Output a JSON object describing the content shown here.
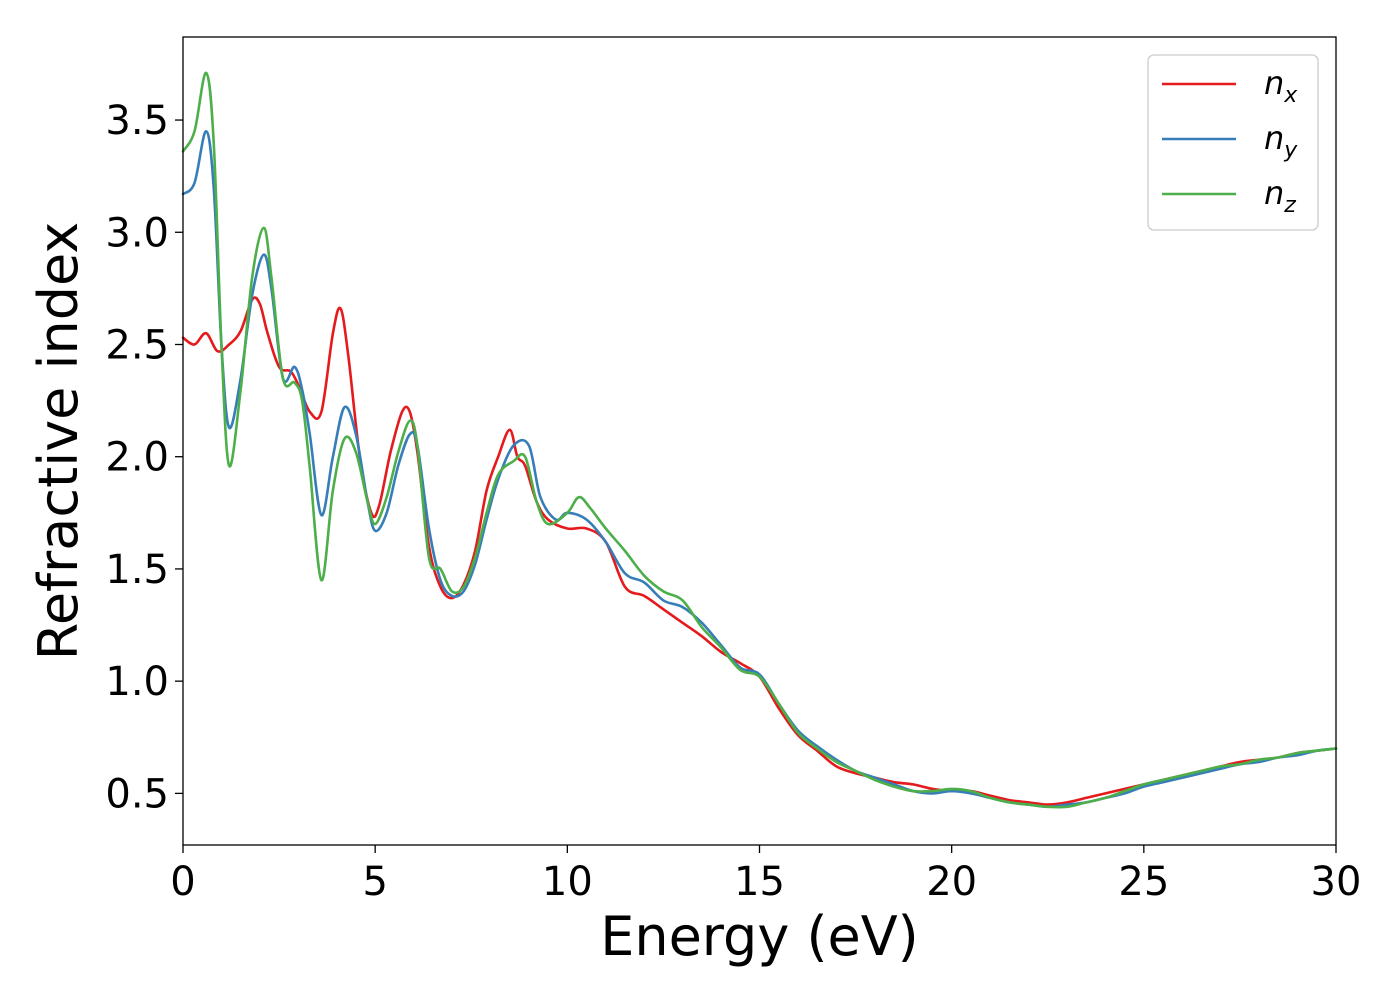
{
  "chart_data": {
    "type": "line",
    "title": "",
    "xlabel": "Energy (eV)",
    "ylabel": "Refractive index",
    "xlim": [
      0,
      30
    ],
    "ylim": [
      0.27,
      3.87
    ],
    "xticks": [
      0,
      5,
      10,
      15,
      20,
      25,
      30
    ],
    "yticks": [
      0.5,
      1.0,
      1.5,
      2.0,
      2.5,
      3.0,
      3.5
    ],
    "xtick_labels": [
      "0",
      "5",
      "10",
      "15",
      "20",
      "25",
      "30"
    ],
    "ytick_labels": [
      "0.5",
      "1.0",
      "1.5",
      "2.0",
      "2.5",
      "3.0",
      "3.5"
    ],
    "grid": false,
    "legend_position": "top-right",
    "series": [
      {
        "name": "n",
        "subscript": "x",
        "color": "#e41a1c",
        "x": [
          0,
          0.3,
          0.6,
          0.9,
          1.2,
          1.5,
          1.8,
          2.0,
          2.2,
          2.5,
          2.8,
          3.0,
          3.3,
          3.6,
          3.9,
          4.1,
          4.3,
          4.6,
          4.9,
          5.1,
          5.4,
          5.7,
          5.9,
          6.1,
          6.4,
          6.7,
          7.0,
          7.3,
          7.6,
          7.9,
          8.2,
          8.5,
          8.7,
          8.9,
          9.2,
          9.5,
          10.0,
          10.5,
          11.0,
          11.5,
          12.0,
          12.5,
          13.0,
          13.5,
          14.0,
          14.5,
          15.0,
          15.5,
          16.0,
          16.5,
          17.0,
          17.5,
          18.0,
          18.5,
          19.0,
          19.5,
          20.0,
          20.5,
          21.0,
          21.5,
          22.0,
          22.5,
          23.0,
          23.5,
          24.0,
          24.5,
          25.0,
          25.5,
          26.0,
          26.5,
          27.0,
          27.5,
          28.0,
          28.5,
          29.0,
          29.5,
          30.0
        ],
        "y": [
          2.53,
          2.5,
          2.55,
          2.47,
          2.5,
          2.56,
          2.7,
          2.68,
          2.55,
          2.4,
          2.38,
          2.32,
          2.2,
          2.2,
          2.55,
          2.66,
          2.45,
          2.0,
          1.75,
          1.78,
          2.02,
          2.2,
          2.2,
          2.02,
          1.6,
          1.42,
          1.37,
          1.43,
          1.58,
          1.85,
          2.0,
          2.12,
          2.0,
          1.96,
          1.8,
          1.72,
          1.68,
          1.68,
          1.62,
          1.42,
          1.38,
          1.32,
          1.26,
          1.2,
          1.13,
          1.08,
          1.02,
          0.88,
          0.76,
          0.69,
          0.62,
          0.59,
          0.57,
          0.55,
          0.54,
          0.52,
          0.51,
          0.51,
          0.49,
          0.47,
          0.46,
          0.45,
          0.46,
          0.48,
          0.5,
          0.52,
          0.54,
          0.56,
          0.58,
          0.6,
          0.62,
          0.64,
          0.65,
          0.66,
          0.68,
          0.69,
          0.7
        ]
      },
      {
        "name": "n",
        "subscript": "y",
        "color": "#377eb8",
        "x": [
          0,
          0.3,
          0.6,
          0.8,
          1.0,
          1.2,
          1.5,
          1.8,
          2.1,
          2.3,
          2.6,
          2.9,
          3.1,
          3.3,
          3.6,
          3.9,
          4.2,
          4.5,
          4.8,
          5.0,
          5.3,
          5.6,
          5.9,
          6.1,
          6.4,
          6.7,
          7.0,
          7.3,
          7.6,
          7.9,
          8.2,
          8.6,
          9.0,
          9.3,
          9.7,
          10.0,
          10.5,
          11.0,
          11.5,
          12.0,
          12.5,
          13.0,
          13.5,
          14.0,
          14.5,
          15.0,
          15.5,
          16.0,
          16.5,
          17.0,
          17.5,
          18.0,
          18.5,
          19.0,
          19.5,
          20.0,
          20.5,
          21.0,
          21.5,
          22.0,
          22.5,
          23.0,
          23.5,
          24.0,
          24.5,
          25.0,
          25.5,
          26.0,
          26.5,
          27.0,
          27.5,
          28.0,
          28.5,
          29.0,
          29.5,
          30.0
        ],
        "y": [
          3.17,
          3.22,
          3.45,
          3.2,
          2.5,
          2.13,
          2.35,
          2.72,
          2.9,
          2.75,
          2.35,
          2.4,
          2.3,
          2.1,
          1.74,
          2.0,
          2.22,
          2.1,
          1.8,
          1.67,
          1.75,
          1.96,
          2.1,
          2.05,
          1.68,
          1.45,
          1.38,
          1.4,
          1.52,
          1.72,
          1.9,
          2.05,
          2.05,
          1.82,
          1.72,
          1.75,
          1.72,
          1.62,
          1.48,
          1.44,
          1.36,
          1.33,
          1.26,
          1.16,
          1.06,
          1.03,
          0.9,
          0.78,
          0.71,
          0.65,
          0.6,
          0.57,
          0.54,
          0.51,
          0.5,
          0.51,
          0.5,
          0.48,
          0.46,
          0.45,
          0.44,
          0.45,
          0.46,
          0.48,
          0.5,
          0.53,
          0.55,
          0.57,
          0.59,
          0.61,
          0.63,
          0.64,
          0.66,
          0.67,
          0.69,
          0.7
        ]
      },
      {
        "name": "n",
        "subscript": "z",
        "color": "#4daf4a",
        "x": [
          0,
          0.3,
          0.6,
          0.8,
          1.0,
          1.2,
          1.5,
          1.8,
          2.1,
          2.3,
          2.6,
          2.9,
          3.1,
          3.3,
          3.6,
          3.9,
          4.2,
          4.5,
          4.8,
          5.0,
          5.3,
          5.6,
          5.9,
          6.1,
          6.4,
          6.7,
          7.0,
          7.3,
          7.6,
          7.9,
          8.2,
          8.6,
          8.9,
          9.2,
          9.5,
          10.0,
          10.3,
          10.6,
          11.0,
          11.5,
          12.0,
          12.5,
          13.0,
          13.5,
          14.0,
          14.5,
          15.0,
          15.5,
          16.0,
          16.5,
          17.0,
          17.5,
          18.0,
          18.5,
          19.0,
          19.5,
          20.0,
          20.5,
          21.0,
          21.5,
          22.0,
          22.5,
          23.0,
          23.5,
          24.0,
          24.5,
          25.0,
          25.5,
          26.0,
          26.5,
          27.0,
          27.5,
          28.0,
          28.5,
          29.0,
          29.5,
          30.0
        ],
        "y": [
          3.36,
          3.45,
          3.71,
          3.4,
          2.5,
          1.96,
          2.3,
          2.8,
          3.02,
          2.8,
          2.35,
          2.33,
          2.25,
          1.95,
          1.45,
          1.85,
          2.08,
          2.02,
          1.8,
          1.7,
          1.82,
          2.02,
          2.16,
          2.05,
          1.55,
          1.5,
          1.4,
          1.42,
          1.55,
          1.75,
          1.92,
          1.98,
          2.0,
          1.8,
          1.7,
          1.75,
          1.82,
          1.77,
          1.68,
          1.58,
          1.47,
          1.4,
          1.36,
          1.24,
          1.15,
          1.05,
          1.02,
          0.9,
          0.77,
          0.7,
          0.64,
          0.6,
          0.56,
          0.53,
          0.51,
          0.51,
          0.52,
          0.51,
          0.48,
          0.46,
          0.45,
          0.44,
          0.44,
          0.46,
          0.48,
          0.51,
          0.54,
          0.56,
          0.58,
          0.6,
          0.62,
          0.63,
          0.65,
          0.66,
          0.68,
          0.69,
          0.7
        ]
      }
    ]
  }
}
